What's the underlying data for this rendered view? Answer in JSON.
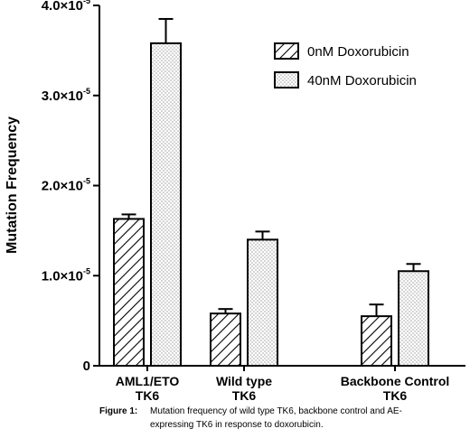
{
  "chart_data": {
    "type": "bar",
    "ylabel": "Mutation Frequency",
    "ylim": [
      0,
      4e-05
    ],
    "yticks": [
      {
        "value": 0,
        "mantissa": "0",
        "exponent": ""
      },
      {
        "value": 1e-05,
        "mantissa": "1.0×10",
        "exponent": "-5"
      },
      {
        "value": 2e-05,
        "mantissa": "2.0×10",
        "exponent": "-5"
      },
      {
        "value": 3e-05,
        "mantissa": "3.0×10",
        "exponent": "-5"
      },
      {
        "value": 4e-05,
        "mantissa": "4.0×10",
        "exponent": "-5"
      }
    ],
    "categories": [
      {
        "line1": "AML1/ETO",
        "line2": "TK6"
      },
      {
        "line1": "Wild type",
        "line2": "TK6"
      },
      {
        "line1": "Backbone Control",
        "line2": "TK6"
      }
    ],
    "series": [
      {
        "name": "0nM Doxorubicin",
        "pattern": "hatch",
        "values": [
          1.63e-05,
          5.8e-06,
          5.5e-06
        ],
        "errors": [
          5e-07,
          5e-07,
          1.3e-06
        ]
      },
      {
        "name": "40nM Doxorubicin",
        "pattern": "dots",
        "values": [
          3.58e-05,
          1.4e-05,
          1.05e-05
        ],
        "errors": [
          2.7e-06,
          9e-07,
          8e-07
        ]
      }
    ],
    "legend_position": "top-right",
    "grid": false
  },
  "caption": {
    "label": "Figure 1:",
    "line1": "Mutation frequency of wild type TK6, backbone control and AE-",
    "line2": "expressing TK6 in response to doxorubicin."
  }
}
